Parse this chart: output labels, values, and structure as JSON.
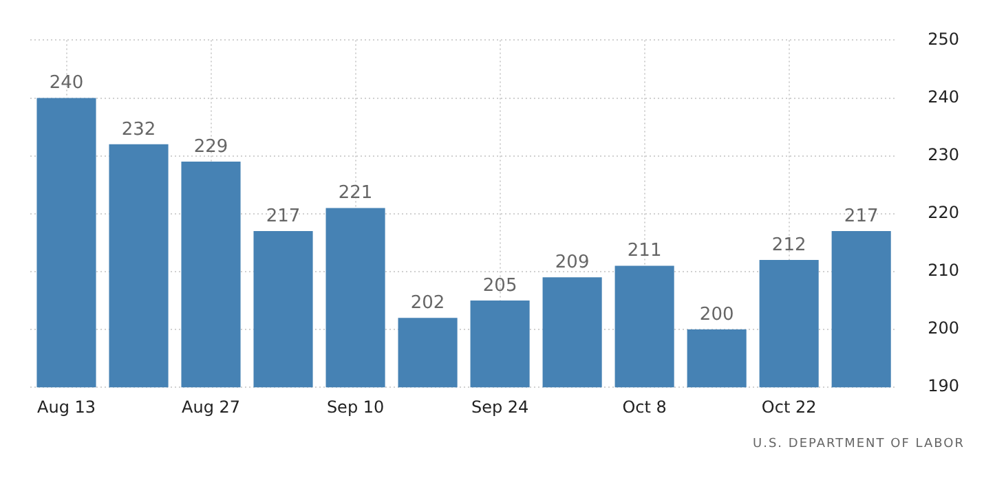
{
  "chart_data": {
    "type": "bar",
    "categories": [
      "Aug 13",
      null,
      "Aug 27",
      null,
      "Sep 10",
      null,
      "Sep 24",
      null,
      "Oct 8",
      null,
      "Oct 22",
      null
    ],
    "values": [
      240,
      232,
      229,
      217,
      221,
      202,
      205,
      209,
      211,
      200,
      212,
      217
    ],
    "color": "#4682b4",
    "ylim": [
      190,
      250
    ],
    "yticks": [
      190,
      200,
      210,
      220,
      230,
      240,
      250
    ],
    "grid": true,
    "data_labels": true,
    "annotations": [
      "U.S. DEPARTMENT OF LABOR"
    ]
  }
}
